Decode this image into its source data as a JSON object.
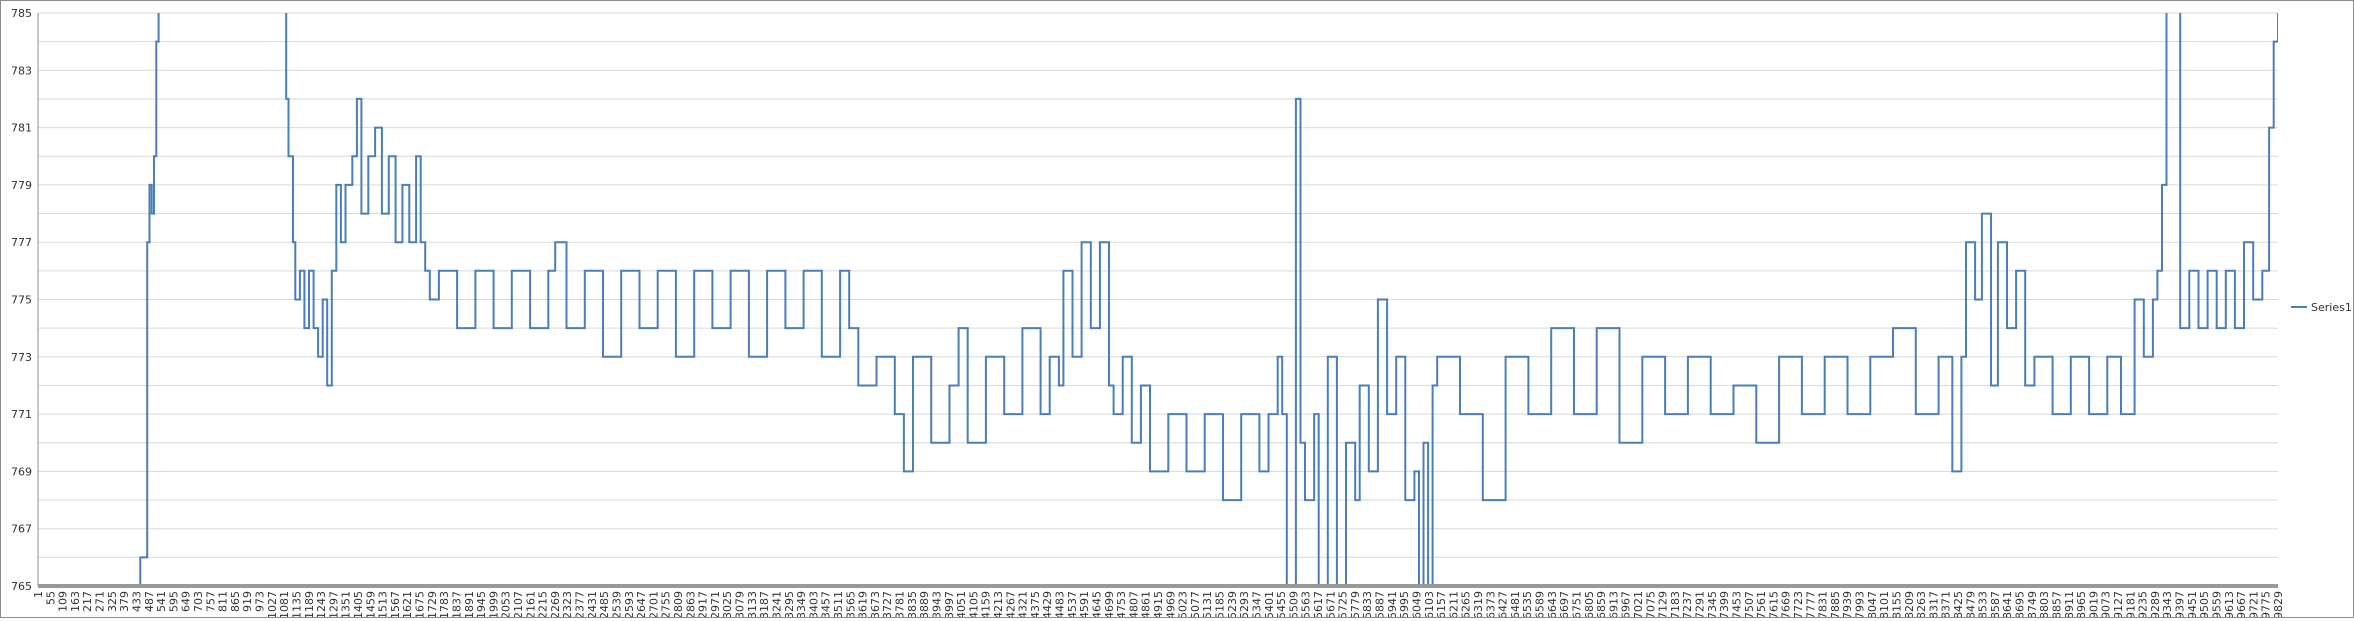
{
  "chart_data": {
    "type": "line",
    "title": "",
    "xlabel": "",
    "ylabel": "",
    "ylim": [
      765,
      785
    ],
    "xlim": [
      1,
      9829
    ],
    "y_ticks": [
      "765",
      "767",
      "769",
      "771",
      "773",
      "775",
      "777",
      "779",
      "781",
      "783",
      "785"
    ],
    "y_minor_grid_step": 1,
    "grid": true,
    "legend": {
      "position": "right",
      "entries": [
        "Series1"
      ]
    },
    "colors": {
      "series": "#4a7ebb",
      "grid": "#d9d9d9",
      "axis": "#8c8c8c"
    },
    "x_tick_labels": [
      "1",
      "55",
      "109",
      "163",
      "217",
      "271",
      "325",
      "379",
      "433",
      "487",
      "541",
      "595",
      "649",
      "703",
      "757",
      "811",
      "865",
      "919",
      "973",
      "1027",
      "1081",
      "1135",
      "1189",
      "1243",
      "1297",
      "1351",
      "1405",
      "1459",
      "1513",
      "1567",
      "1621",
      "1675",
      "1729",
      "1783",
      "1837",
      "1891",
      "1945",
      "1999",
      "2053",
      "2107",
      "2161",
      "2215",
      "2269",
      "2323",
      "2377",
      "2431",
      "2485",
      "2539",
      "2593",
      "2647",
      "2701",
      "2755",
      "2809",
      "2863",
      "2917",
      "2971",
      "3025",
      "3079",
      "3133",
      "3187",
      "3241",
      "3295",
      "3349",
      "3403",
      "3457",
      "3511",
      "3565",
      "3619",
      "3673",
      "3727",
      "3781",
      "3835",
      "3889",
      "3943",
      "3997",
      "4051",
      "4105",
      "4159",
      "4213",
      "4267",
      "4321",
      "4375",
      "4429",
      "4483",
      "4537",
      "4591",
      "4645",
      "4699",
      "4753",
      "4807",
      "4861",
      "4915",
      "4969",
      "5023",
      "5077",
      "5131",
      "5185",
      "5239",
      "5293",
      "5347",
      "5401",
      "5455",
      "5509",
      "5563",
      "5617",
      "5671",
      "5725",
      "5779",
      "5833",
      "5887",
      "5941",
      "5995",
      "6049",
      "6103",
      "6157",
      "6211",
      "6265",
      "6319",
      "6373",
      "6427",
      "6481",
      "6535",
      "6589",
      "6643",
      "6697",
      "6751",
      "6805",
      "6859",
      "6913",
      "6967",
      "7021",
      "7075",
      "7129",
      "7183",
      "7237",
      "7291",
      "7345",
      "7399",
      "7453",
      "7507",
      "7561",
      "7615",
      "7669",
      "7723",
      "7777",
      "7831",
      "7885",
      "7939",
      "7993",
      "8047",
      "8101",
      "8155",
      "8209",
      "8263",
      "8317",
      "8371",
      "8425",
      "8479",
      "8533",
      "8587",
      "8641",
      "8695",
      "8749",
      "8803",
      "8857",
      "8911",
      "8965",
      "9019",
      "9073",
      "9127",
      "9181",
      "9235",
      "9289",
      "9343",
      "9397",
      "9451",
      "9505",
      "9559",
      "9613",
      "9667",
      "9721",
      "9775",
      "9829"
    ],
    "series": [
      {
        "name": "Series1",
        "points": [
          [
            1,
            765
          ],
          [
            430,
            765
          ],
          [
            450,
            766
          ],
          [
            470,
            766
          ],
          [
            480,
            777
          ],
          [
            490,
            779
          ],
          [
            500,
            778
          ],
          [
            510,
            780
          ],
          [
            520,
            784
          ],
          [
            530,
            786
          ],
          [
            1080,
            786
          ],
          [
            1090,
            782
          ],
          [
            1100,
            780
          ],
          [
            1120,
            777
          ],
          [
            1130,
            775
          ],
          [
            1150,
            776
          ],
          [
            1170,
            774
          ],
          [
            1190,
            776
          ],
          [
            1210,
            774
          ],
          [
            1230,
            773
          ],
          [
            1250,
            775
          ],
          [
            1270,
            772
          ],
          [
            1290,
            776
          ],
          [
            1310,
            779
          ],
          [
            1330,
            777
          ],
          [
            1350,
            779
          ],
          [
            1380,
            780
          ],
          [
            1400,
            782
          ],
          [
            1420,
            778
          ],
          [
            1450,
            780
          ],
          [
            1480,
            781
          ],
          [
            1510,
            778
          ],
          [
            1540,
            780
          ],
          [
            1570,
            777
          ],
          [
            1600,
            779
          ],
          [
            1630,
            777
          ],
          [
            1660,
            780
          ],
          [
            1680,
            777
          ],
          [
            1700,
            776
          ],
          [
            1720,
            775
          ],
          [
            1760,
            776
          ],
          [
            1840,
            774
          ],
          [
            1920,
            776
          ],
          [
            2000,
            774
          ],
          [
            2080,
            776
          ],
          [
            2160,
            774
          ],
          [
            2240,
            776
          ],
          [
            2270,
            777
          ],
          [
            2320,
            774
          ],
          [
            2400,
            776
          ],
          [
            2480,
            773
          ],
          [
            2560,
            776
          ],
          [
            2640,
            774
          ],
          [
            2720,
            776
          ],
          [
            2800,
            773
          ],
          [
            2880,
            776
          ],
          [
            2960,
            774
          ],
          [
            3040,
            776
          ],
          [
            3120,
            773
          ],
          [
            3200,
            776
          ],
          [
            3280,
            774
          ],
          [
            3360,
            776
          ],
          [
            3440,
            773
          ],
          [
            3520,
            776
          ],
          [
            3560,
            774
          ],
          [
            3600,
            772
          ],
          [
            3680,
            773
          ],
          [
            3760,
            771
          ],
          [
            3800,
            769
          ],
          [
            3840,
            773
          ],
          [
            3920,
            770
          ],
          [
            4000,
            772
          ],
          [
            4040,
            774
          ],
          [
            4080,
            770
          ],
          [
            4160,
            773
          ],
          [
            4240,
            771
          ],
          [
            4320,
            774
          ],
          [
            4400,
            771
          ],
          [
            4440,
            773
          ],
          [
            4480,
            772
          ],
          [
            4500,
            776
          ],
          [
            4540,
            773
          ],
          [
            4580,
            777
          ],
          [
            4620,
            774
          ],
          [
            4660,
            777
          ],
          [
            4700,
            772
          ],
          [
            4720,
            771
          ],
          [
            4760,
            773
          ],
          [
            4800,
            770
          ],
          [
            4840,
            772
          ],
          [
            4880,
            769
          ],
          [
            4960,
            771
          ],
          [
            5040,
            769
          ],
          [
            5120,
            771
          ],
          [
            5200,
            768
          ],
          [
            5280,
            771
          ],
          [
            5360,
            769
          ],
          [
            5400,
            771
          ],
          [
            5440,
            773
          ],
          [
            5460,
            771
          ],
          [
            5480,
            765
          ],
          [
            5500,
            764
          ],
          [
            5520,
            782
          ],
          [
            5540,
            770
          ],
          [
            5560,
            768
          ],
          [
            5600,
            771
          ],
          [
            5620,
            764
          ],
          [
            5660,
            773
          ],
          [
            5700,
            764
          ],
          [
            5740,
            770
          ],
          [
            5780,
            768
          ],
          [
            5800,
            772
          ],
          [
            5840,
            769
          ],
          [
            5880,
            775
          ],
          [
            5920,
            771
          ],
          [
            5960,
            773
          ],
          [
            6000,
            768
          ],
          [
            6040,
            769
          ],
          [
            6060,
            764
          ],
          [
            6080,
            770
          ],
          [
            6100,
            764
          ],
          [
            6120,
            772
          ],
          [
            6140,
            773
          ],
          [
            6240,
            771
          ],
          [
            6340,
            768
          ],
          [
            6440,
            773
          ],
          [
            6540,
            771
          ],
          [
            6640,
            774
          ],
          [
            6740,
            771
          ],
          [
            6840,
            774
          ],
          [
            6940,
            770
          ],
          [
            7040,
            773
          ],
          [
            7140,
            771
          ],
          [
            7240,
            773
          ],
          [
            7340,
            771
          ],
          [
            7440,
            772
          ],
          [
            7540,
            770
          ],
          [
            7640,
            773
          ],
          [
            7740,
            771
          ],
          [
            7840,
            773
          ],
          [
            7940,
            771
          ],
          [
            8040,
            773
          ],
          [
            8140,
            774
          ],
          [
            8240,
            771
          ],
          [
            8340,
            773
          ],
          [
            8400,
            769
          ],
          [
            8440,
            773
          ],
          [
            8460,
            777
          ],
          [
            8500,
            775
          ],
          [
            8530,
            778
          ],
          [
            8570,
            772
          ],
          [
            8600,
            777
          ],
          [
            8640,
            774
          ],
          [
            8680,
            776
          ],
          [
            8720,
            772
          ],
          [
            8760,
            773
          ],
          [
            8840,
            771
          ],
          [
            8920,
            773
          ],
          [
            9000,
            771
          ],
          [
            9080,
            773
          ],
          [
            9140,
            771
          ],
          [
            9200,
            775
          ],
          [
            9240,
            773
          ],
          [
            9280,
            775
          ],
          [
            9300,
            776
          ],
          [
            9320,
            779
          ],
          [
            9340,
            786
          ],
          [
            9380,
            786
          ],
          [
            9400,
            774
          ],
          [
            9440,
            776
          ],
          [
            9480,
            774
          ],
          [
            9520,
            776
          ],
          [
            9560,
            774
          ],
          [
            9600,
            776
          ],
          [
            9640,
            774
          ],
          [
            9680,
            777
          ],
          [
            9720,
            775
          ],
          [
            9760,
            776
          ],
          [
            9790,
            781
          ],
          [
            9810,
            784
          ],
          [
            9829,
            786
          ]
        ]
      }
    ]
  }
}
